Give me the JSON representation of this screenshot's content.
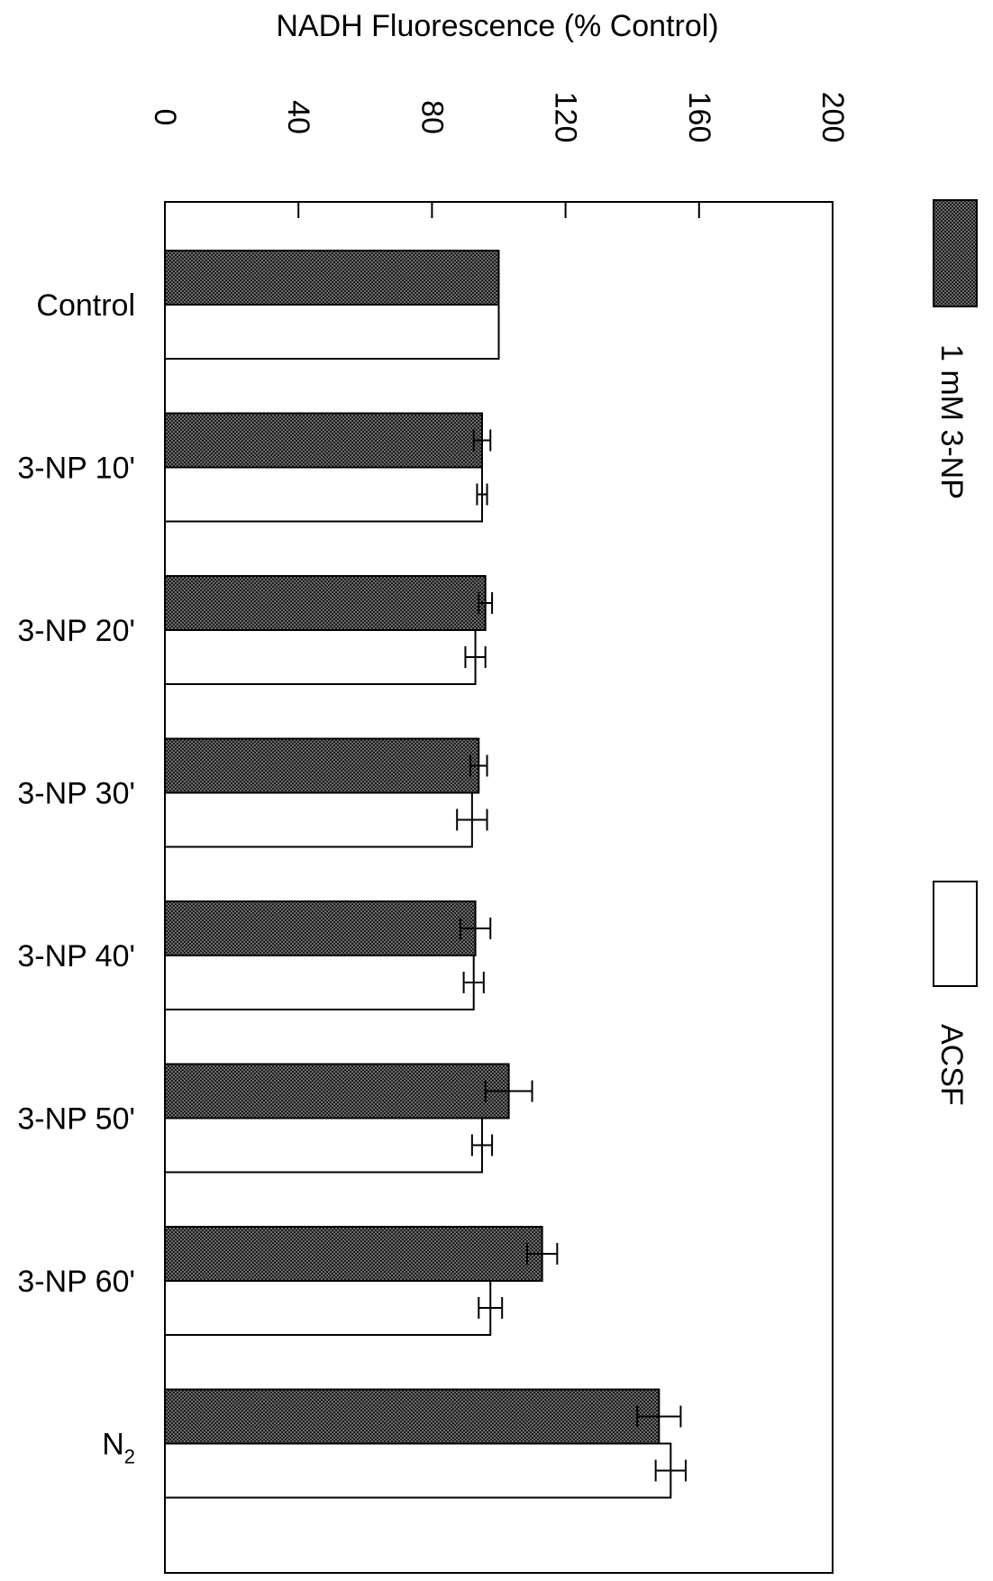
{
  "chart_data": {
    "type": "bar",
    "orientation": "horizontal",
    "title": "",
    "xlabel": "NADH Fluorescence (% Control)",
    "ylabel": "",
    "xlim": [
      0,
      200
    ],
    "ticks": [
      "0",
      "40",
      "80",
      "120",
      "160",
      "200"
    ],
    "tick_values": [
      0,
      40,
      80,
      120,
      160,
      200
    ],
    "grid": false,
    "legend_position": "right",
    "categories": [
      {
        "text": "Control",
        "sub": ""
      },
      {
        "text": "3-NP 10'",
        "sub": ""
      },
      {
        "text": "3-NP 20'",
        "sub": ""
      },
      {
        "text": "3-NP 30'",
        "sub": ""
      },
      {
        "text": "3-NP 40'",
        "sub": ""
      },
      {
        "text": "3-NP 50'",
        "sub": ""
      },
      {
        "text": "3-NP 60'",
        "sub": ""
      },
      {
        "text": "N",
        "sub": "2"
      }
    ],
    "series": [
      {
        "name": "1 mM 3-NP",
        "pattern": "crosshatch",
        "color": "#555555",
        "values": [
          100,
          95,
          96,
          94,
          93,
          103,
          113,
          148
        ],
        "errors": [
          0,
          2.5,
          2,
          2.5,
          4.5,
          7,
          4.5,
          6.5
        ]
      },
      {
        "name": "ACSF",
        "pattern": "solid",
        "color": "#ffffff",
        "values": [
          100,
          95,
          93,
          92,
          92.5,
          95,
          97.5,
          151.5
        ],
        "errors": [
          0,
          1.5,
          3,
          4.5,
          3,
          3,
          3.5,
          4.5
        ]
      }
    ]
  }
}
